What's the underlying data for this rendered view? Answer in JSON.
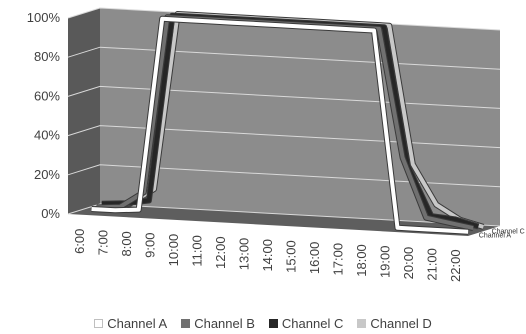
{
  "chart_data": {
    "type": "line",
    "title": "",
    "xlabel": "",
    "ylabel": "",
    "ylim": [
      0,
      100
    ],
    "y_ticks": [
      "0%",
      "20%",
      "40%",
      "60%",
      "80%",
      "100%"
    ],
    "categories": [
      "6:00",
      "7:00",
      "8:00",
      "9:00",
      "10:00",
      "11:00",
      "12:00",
      "13:00",
      "14:00",
      "15:00",
      "16:00",
      "17:00",
      "18:00",
      "19:00",
      "20:00",
      "21:00",
      "22:00"
    ],
    "depth_labels": [
      "Channel C",
      "Channel A"
    ],
    "legend_position": "bottom",
    "grid": true,
    "series": [
      {
        "name": "Channel A",
        "color": "#ffffff",
        "depth": 0,
        "values": [
          1,
          1,
          2,
          100,
          100,
          100,
          100,
          100,
          100,
          100,
          100,
          100,
          100,
          0,
          0,
          0,
          0
        ]
      },
      {
        "name": "Channel B",
        "color": "#707070",
        "depth": 1,
        "values": [
          1,
          2,
          10,
          100,
          100,
          100,
          100,
          100,
          100,
          100,
          100,
          100,
          100,
          35,
          5,
          3,
          1
        ]
      },
      {
        "name": "Channel C",
        "color": "#262626",
        "depth": 2,
        "values": [
          2,
          3,
          5,
          100,
          100,
          100,
          100,
          100,
          100,
          100,
          100,
          100,
          100,
          30,
          5,
          4,
          1
        ]
      },
      {
        "name": "Channel D",
        "color": "#c8c8c8",
        "depth": 3,
        "values": [
          0,
          2,
          10,
          100,
          100,
          100,
          100,
          100,
          100,
          100,
          100,
          100,
          100,
          30,
          10,
          3,
          0
        ]
      }
    ]
  }
}
